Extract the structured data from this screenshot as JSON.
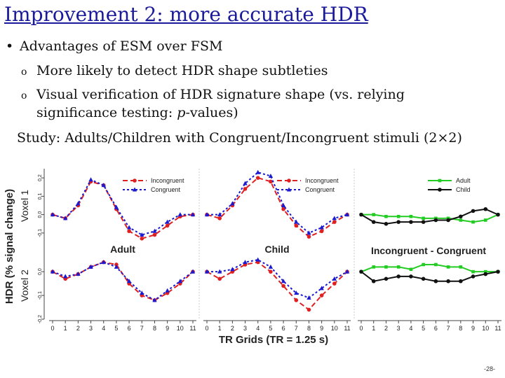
{
  "slide": {
    "title": "Improvement 2: more accurate HDR",
    "bullet": "Advantages of ESM over FSM",
    "sub1": "More likely to detect HDR shape subtleties",
    "sub2_line1": "Visual verification of HDR signature shape (vs. relying",
    "sub2_line2_pre": "significance testing: ",
    "sub2_line2_em": "p",
    "sub2_line2_post": "-values)",
    "study": "Study: Adults/Children with Congruent/Incongruent stimuli (2×2)",
    "page_number": "-28-"
  },
  "chart_data": {
    "type": "line",
    "ylabel": "HDR (% signal change)",
    "xlabel": "TR Grids (TR = 1.25 s)",
    "row_labels": [
      "Voxel 1",
      "Voxel 2"
    ],
    "x": [
      0,
      1,
      2,
      3,
      4,
      5,
      6,
      7,
      8,
      9,
      10,
      11
    ],
    "yticks": {
      "voxel1": [
        "0.2",
        "0.1",
        "0.0",
        "-0.1"
      ],
      "voxel2": [
        "0.0",
        "-0.1",
        "-0.2"
      ]
    },
    "ylim": {
      "voxel1": [
        -0.15,
        0.25
      ],
      "voxel2": [
        -0.2,
        0.08
      ]
    },
    "column_titles": [
      "Adult",
      "Child",
      "Incongruent - Congruent"
    ],
    "colors": {
      "incongruent": "#e02020",
      "congruent": "#1a1ad0",
      "adult": "#22cc22",
      "child": "#111111"
    },
    "panels": [
      {
        "col": 0,
        "row": 0,
        "legend": [
          "Incongruent",
          "Congruent"
        ],
        "series": [
          {
            "name": "Incongruent",
            "values": [
              0.0,
              -0.02,
              0.05,
              0.18,
              0.16,
              0.03,
              -0.09,
              -0.13,
              -0.11,
              -0.06,
              -0.01,
              0.0
            ]
          },
          {
            "name": "Congruent",
            "values": [
              0.0,
              -0.02,
              0.06,
              0.19,
              0.16,
              0.04,
              -0.07,
              -0.11,
              -0.09,
              -0.04,
              0.0,
              0.0
            ]
          }
        ]
      },
      {
        "col": 1,
        "row": 0,
        "legend": [
          "Incongruent",
          "Congruent"
        ],
        "series": [
          {
            "name": "Incongruent",
            "values": [
              0.0,
              -0.02,
              0.05,
              0.14,
              0.2,
              0.18,
              0.03,
              -0.06,
              -0.12,
              -0.09,
              -0.04,
              0.0
            ]
          },
          {
            "name": "Congruent",
            "values": [
              0.0,
              0.0,
              0.06,
              0.17,
              0.23,
              0.21,
              0.05,
              -0.04,
              -0.1,
              -0.07,
              -0.02,
              0.0
            ]
          }
        ]
      },
      {
        "col": 2,
        "row": 0,
        "legend": [
          "Adult",
          "Child"
        ],
        "series": [
          {
            "name": "Adult",
            "values": [
              0.0,
              0.0,
              -0.01,
              -0.01,
              -0.01,
              -0.02,
              -0.02,
              -0.02,
              -0.03,
              -0.04,
              -0.03,
              0.0
            ]
          },
          {
            "name": "Child",
            "values": [
              0.0,
              -0.04,
              -0.05,
              -0.04,
              -0.04,
              -0.04,
              -0.03,
              -0.03,
              -0.01,
              0.02,
              0.03,
              0.0
            ]
          }
        ]
      },
      {
        "col": 0,
        "row": 1,
        "series": [
          {
            "name": "Incongruent",
            "values": [
              0.0,
              -0.03,
              -0.01,
              0.02,
              0.04,
              0.03,
              -0.05,
              -0.1,
              -0.12,
              -0.09,
              -0.05,
              0.0
            ]
          },
          {
            "name": "Congruent",
            "values": [
              0.0,
              -0.02,
              -0.01,
              0.02,
              0.04,
              0.02,
              -0.04,
              -0.09,
              -0.12,
              -0.08,
              -0.04,
              0.0
            ]
          }
        ]
      },
      {
        "col": 1,
        "row": 1,
        "series": [
          {
            "name": "Incongruent",
            "values": [
              0.0,
              -0.03,
              0.0,
              0.03,
              0.04,
              0.0,
              -0.06,
              -0.12,
              -0.16,
              -0.1,
              -0.05,
              0.0
            ]
          },
          {
            "name": "Congruent",
            "values": [
              0.0,
              0.0,
              0.01,
              0.04,
              0.05,
              0.02,
              -0.04,
              -0.09,
              -0.11,
              -0.07,
              -0.03,
              0.0
            ]
          }
        ]
      },
      {
        "col": 2,
        "row": 1,
        "series": [
          {
            "name": "Adult",
            "values": [
              0.0,
              0.02,
              0.02,
              0.02,
              0.01,
              0.03,
              0.03,
              0.02,
              0.02,
              0.0,
              0.0,
              0.0
            ]
          },
          {
            "name": "Child",
            "values": [
              0.0,
              -0.04,
              -0.03,
              -0.02,
              -0.02,
              -0.03,
              -0.04,
              -0.04,
              -0.04,
              -0.02,
              -0.01,
              0.0
            ]
          }
        ]
      }
    ]
  }
}
